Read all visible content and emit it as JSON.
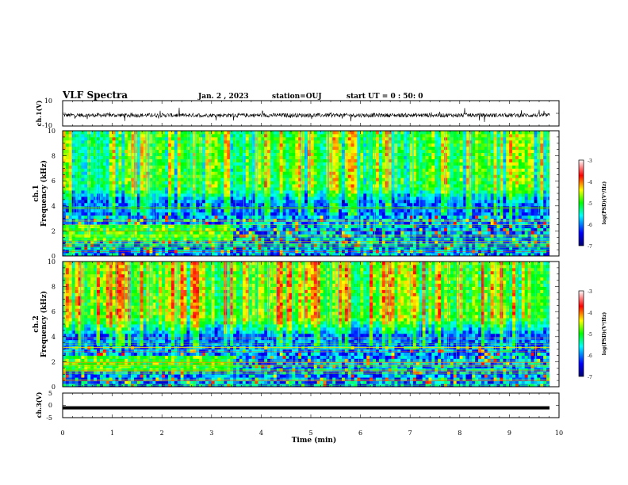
{
  "header": {
    "title": "VLF Spectra",
    "date": "Jan. 2 , 2023",
    "station": "station=OUJ",
    "start": "start UT = 0 : 50: 0"
  },
  "chart_data": [
    {
      "type": "line",
      "ylabel": "ch.1(V)",
      "ylim": [
        -10,
        10
      ],
      "yticks": [
        "10",
        "-10"
      ],
      "description_free": true
    },
    {
      "type": "heatmap",
      "ylabel": "ch.1\nFrequency (kHz)",
      "ylabel_line1": "ch.1",
      "ylabel_line2": "Frequency (kHz)",
      "ylim": [
        0,
        10
      ],
      "yticks": [
        "0",
        "2",
        "4",
        "6",
        "8",
        "10"
      ],
      "colorbar": {
        "label": "log(PSD)(V²/Hz)",
        "range": [
          -7,
          -3
        ],
        "ticks": [
          "-3",
          "-4",
          "-5",
          "-6",
          "-7"
        ]
      }
    },
    {
      "type": "heatmap",
      "ylabel_line1": "ch.2",
      "ylabel_line2": "Frequency (kHz)",
      "ylim": [
        0,
        10
      ],
      "yticks": [
        "0",
        "2",
        "4",
        "6",
        "8",
        "10"
      ],
      "colorbar": {
        "label": "log(PSD)(V²/Hz)",
        "range": [
          -7,
          -3
        ],
        "ticks": [
          "-3",
          "-4",
          "-5",
          "-6",
          "-7"
        ]
      }
    },
    {
      "type": "line",
      "ylabel": "ch.3(V)",
      "ylim": [
        -5,
        5
      ],
      "yticks": [
        "5",
        "0",
        "-5"
      ],
      "level": -1
    }
  ],
  "xaxis": {
    "label": "Time (min)",
    "xlim": [
      0,
      10
    ],
    "ticks": [
      "0",
      "1",
      "2",
      "3",
      "4",
      "5",
      "6",
      "7",
      "8",
      "9",
      "10"
    ]
  }
}
